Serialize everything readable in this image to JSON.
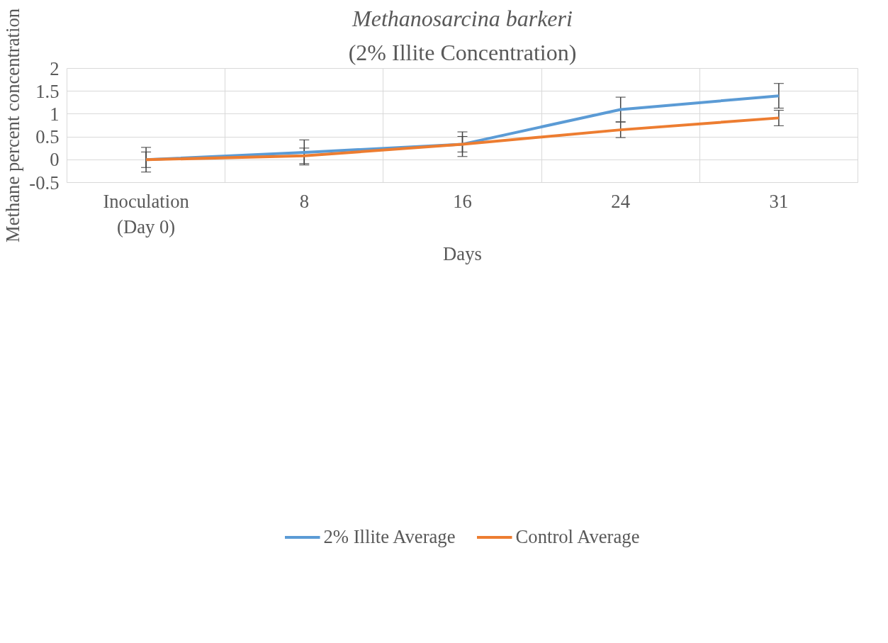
{
  "chart_data": {
    "type": "line",
    "title": "Methanosarcina barkeri",
    "subtitle": "(2% Illite Concentration)",
    "xlabel": "Days",
    "ylabel": "Methane percent concentration",
    "categories": [
      "Inoculation\n(Day 0)",
      "8",
      "16",
      "24",
      "31"
    ],
    "series": [
      {
        "name": "2% Illite Average",
        "color": "#5b9bd5",
        "values": [
          0,
          0.16,
          0.34,
          1.1,
          1.4
        ],
        "errors": [
          0.27,
          0.275,
          0.27,
          0.27,
          0.27
        ]
      },
      {
        "name": "Control Average",
        "color": "#ed7d31",
        "values": [
          0,
          0.085,
          0.34,
          0.655,
          0.915
        ],
        "errors": [
          0.17,
          0.17,
          0.17,
          0.17,
          0.17
        ]
      }
    ],
    "ylim": [
      -0.5,
      2
    ],
    "yticks": [
      -0.5,
      0,
      0.5,
      1,
      1.5,
      2
    ],
    "grid": true,
    "legend": "bottom",
    "marker": "none",
    "line_style": "solid"
  }
}
